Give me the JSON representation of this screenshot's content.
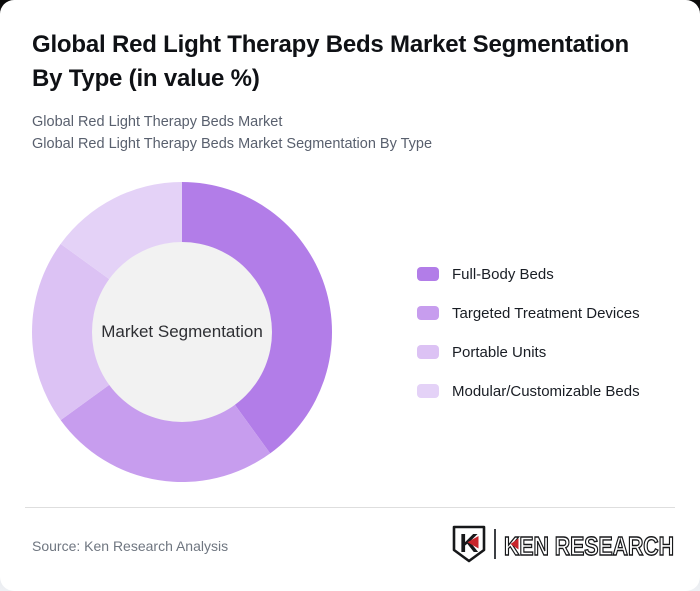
{
  "page": {
    "background_top_color": "#0a0a0a",
    "background_bottom_color": "#eef0f4",
    "card_color": "#ffffff"
  },
  "header": {
    "title_line1": "Global Red Light Therapy Beds Market Segmentation",
    "title_line2": "By Type (in value %)",
    "subtitle_line1": "Global Red Light Therapy Beds Market",
    "subtitle_line2": "Global Red Light Therapy Beds Market Segmentation By Type"
  },
  "chart_data": {
    "type": "pie",
    "subtype": "donut",
    "title": "Global Red Light Therapy Beds Market Segmentation By Type (in value %)",
    "center_label": "Market Segmentation",
    "categories": [
      "Full-Body Beds",
      "Targeted Treatment Devices",
      "Portable Units",
      "Modular/Customizable Beds"
    ],
    "values": [
      40,
      25,
      20,
      15
    ],
    "unit": "%",
    "colors": [
      "#b27de8",
      "#c79dee",
      "#dcc2f4",
      "#e4d2f7"
    ],
    "start_angle_deg": 0,
    "direction": "clockwise",
    "inner_radius_ratio": 0.6,
    "inner_circle_color": "#f2f2f2",
    "legend_position": "right"
  },
  "footer": {
    "source": "Source: Ken Research Analysis",
    "logo": {
      "badge_letter": "K",
      "brand": "KEN RESEARCH",
      "accent_color": "#c9252b",
      "outline_color": "#17181a"
    }
  }
}
